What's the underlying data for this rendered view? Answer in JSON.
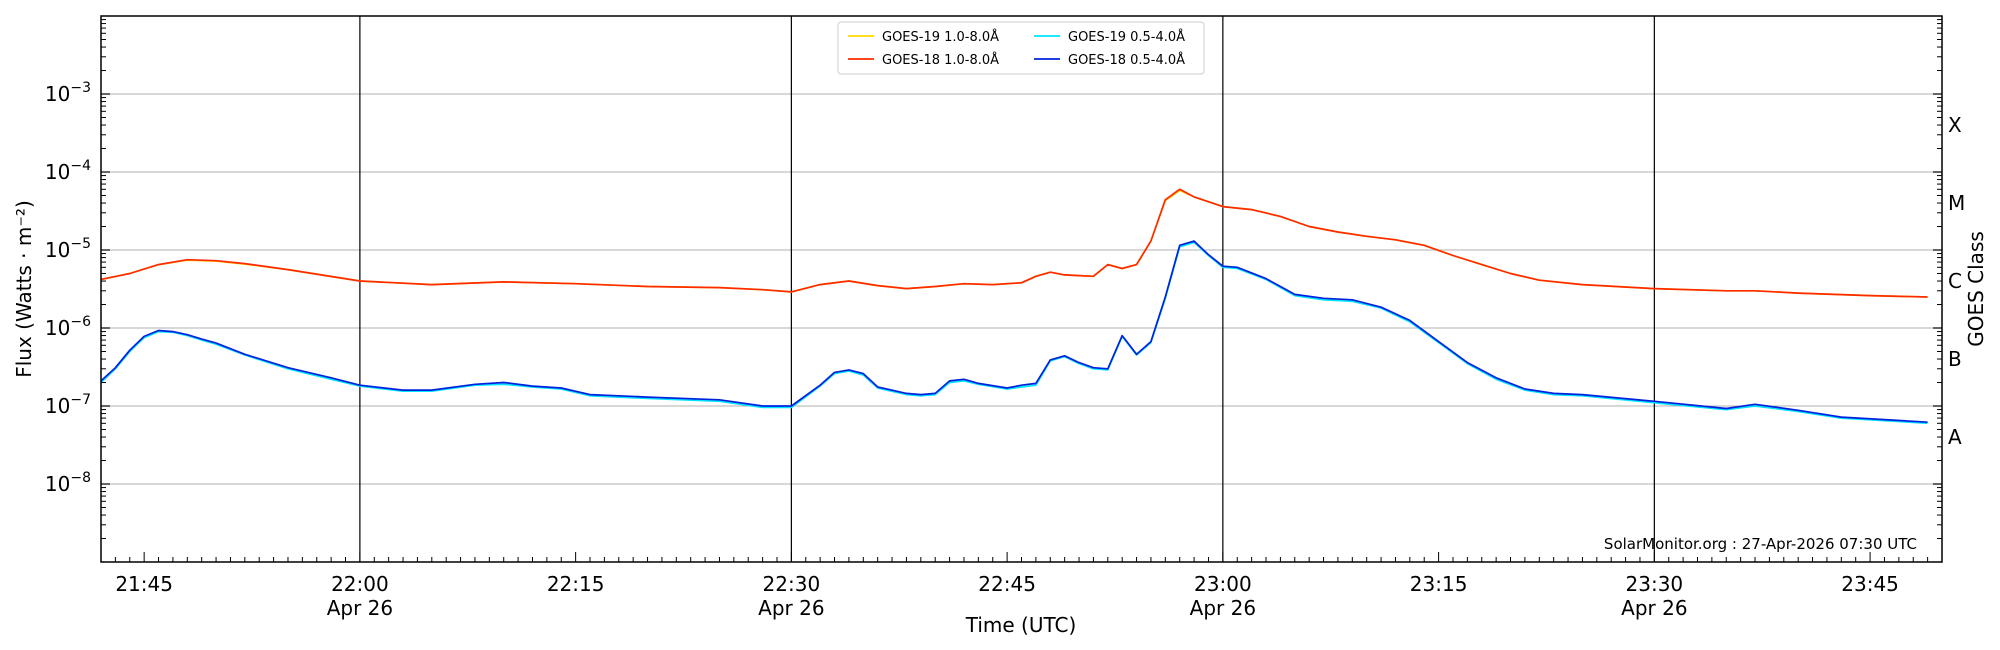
{
  "chart_data": {
    "type": "line",
    "title": "",
    "xlabel": "Time (UTC)",
    "ylabel": "Flux (Watts · m⁻²)",
    "y2label": "GOES Class",
    "yscale": "log",
    "ylim": [
      1e-09,
      0.01
    ],
    "xlim": [
      "21:42",
      "23:50"
    ],
    "grid": "horizontal",
    "legend_position": "top-center",
    "credit": "SolarMonitor.org : 27-Apr-2026 07:30 UTC",
    "y_ticks": [
      {
        "value": 0.001,
        "mant": "10",
        "exp": "−3"
      },
      {
        "value": 0.0001,
        "mant": "10",
        "exp": "−4"
      },
      {
        "value": 1e-05,
        "mant": "10",
        "exp": "−5"
      },
      {
        "value": 1e-06,
        "mant": "10",
        "exp": "−6"
      },
      {
        "value": 1e-07,
        "mant": "10",
        "exp": "−7"
      },
      {
        "value": 1e-08,
        "mant": "10",
        "exp": "−8"
      }
    ],
    "x_ticks": [
      {
        "time": "21:45",
        "label": "21:45",
        "date": ""
      },
      {
        "time": "22:00",
        "label": "22:00",
        "date": "Apr 26"
      },
      {
        "time": "22:15",
        "label": "22:15",
        "date": ""
      },
      {
        "time": "22:30",
        "label": "22:30",
        "date": "Apr 26"
      },
      {
        "time": "22:45",
        "label": "22:45",
        "date": ""
      },
      {
        "time": "23:00",
        "label": "23:00",
        "date": "Apr 26"
      },
      {
        "time": "23:15",
        "label": "23:15",
        "date": ""
      },
      {
        "time": "23:30",
        "label": "23:30",
        "date": "Apr 26"
      },
      {
        "time": "23:45",
        "label": "23:45",
        "date": ""
      }
    ],
    "vertical_lines": [
      "22:00",
      "22:30",
      "23:00",
      "23:30"
    ],
    "goes_classes": [
      {
        "label": "X",
        "flux": 0.0004
      },
      {
        "label": "M",
        "flux": 4e-05
      },
      {
        "label": "C",
        "flux": 4e-06
      },
      {
        "label": "B",
        "flux": 4e-07
      },
      {
        "label": "A",
        "flux": 4e-08
      }
    ],
    "series": [
      {
        "name": "GOES-19 1.0-8.0Å",
        "color": "#ffd700",
        "x": [
          "21:42",
          "21:44",
          "21:46",
          "21:48",
          "21:50",
          "21:52",
          "21:55",
          "22:00",
          "22:05",
          "22:10",
          "22:15",
          "22:20",
          "22:25",
          "22:28",
          "22:30",
          "22:32",
          "22:34",
          "22:36",
          "22:38",
          "22:40",
          "22:42",
          "22:44",
          "22:46",
          "22:47",
          "22:48",
          "22:49",
          "22:50",
          "22:51",
          "22:52",
          "22:53",
          "22:54",
          "22:55",
          "22:56",
          "22:57",
          "22:58",
          "23:00",
          "23:02",
          "23:04",
          "23:06",
          "23:08",
          "23:10",
          "23:12",
          "23:14",
          "23:16",
          "23:18",
          "23:20",
          "23:22",
          "23:25",
          "23:30",
          "23:35",
          "23:37",
          "23:40",
          "23:45",
          "23:49"
        ],
        "y": [
          4.2e-06,
          5e-06,
          6.5e-06,
          7.4e-06,
          7.2e-06,
          6.6e-06,
          5.6e-06,
          4e-06,
          3.6e-06,
          3.9e-06,
          3.7e-06,
          3.4e-06,
          3.3e-06,
          3.1e-06,
          2.9e-06,
          3.6e-06,
          4e-06,
          3.5e-06,
          3.2e-06,
          3.4e-06,
          3.7e-06,
          3.6e-06,
          3.8e-06,
          4.6e-06,
          5.2e-06,
          4.8e-06,
          4.7e-06,
          4.6e-06,
          6.5e-06,
          5.8e-06,
          6.5e-06,
          1.3e-05,
          4.3e-05,
          5.8e-05,
          4.8e-05,
          3.6e-05,
          3.3e-05,
          2.7e-05,
          2e-05,
          1.7e-05,
          1.5e-05,
          1.35e-05,
          1.15e-05,
          8.5e-06,
          6.5e-06,
          5e-06,
          4.1e-06,
          3.6e-06,
          3.2e-06,
          3e-06,
          3e-06,
          2.8e-06,
          2.6e-06,
          2.5e-06
        ]
      },
      {
        "name": "GOES-18 1.0-8.0Å",
        "color": "#ff2a00",
        "x": [
          "21:42",
          "21:44",
          "21:46",
          "21:48",
          "21:50",
          "21:52",
          "21:55",
          "22:00",
          "22:05",
          "22:10",
          "22:15",
          "22:20",
          "22:25",
          "22:28",
          "22:30",
          "22:32",
          "22:34",
          "22:36",
          "22:38",
          "22:40",
          "22:42",
          "22:44",
          "22:46",
          "22:47",
          "22:48",
          "22:49",
          "22:50",
          "22:51",
          "22:52",
          "22:53",
          "22:54",
          "22:55",
          "22:56",
          "22:57",
          "22:58",
          "23:00",
          "23:02",
          "23:04",
          "23:06",
          "23:08",
          "23:10",
          "23:12",
          "23:14",
          "23:16",
          "23:18",
          "23:20",
          "23:22",
          "23:25",
          "23:30",
          "23:35",
          "23:37",
          "23:40",
          "23:45",
          "23:49"
        ],
        "y": [
          4.2e-06,
          5e-06,
          6.5e-06,
          7.5e-06,
          7.3e-06,
          6.7e-06,
          5.6e-06,
          4e-06,
          3.6e-06,
          3.9e-06,
          3.7e-06,
          3.4e-06,
          3.3e-06,
          3.1e-06,
          2.9e-06,
          3.6e-06,
          4e-06,
          3.5e-06,
          3.2e-06,
          3.4e-06,
          3.7e-06,
          3.6e-06,
          3.8e-06,
          4.6e-06,
          5.2e-06,
          4.8e-06,
          4.7e-06,
          4.6e-06,
          6.5e-06,
          5.8e-06,
          6.5e-06,
          1.3e-05,
          4.4e-05,
          6e-05,
          4.8e-05,
          3.6e-05,
          3.3e-05,
          2.7e-05,
          2e-05,
          1.7e-05,
          1.5e-05,
          1.35e-05,
          1.15e-05,
          8.5e-06,
          6.5e-06,
          5e-06,
          4.1e-06,
          3.6e-06,
          3.2e-06,
          3e-06,
          3e-06,
          2.8e-06,
          2.6e-06,
          2.5e-06
        ]
      },
      {
        "name": "GOES-19 0.5-4.0Å",
        "color": "#00e5ff",
        "x": [
          "21:42",
          "21:43",
          "21:44",
          "21:45",
          "21:46",
          "21:47",
          "21:48",
          "21:49",
          "21:50",
          "21:52",
          "21:55",
          "21:58",
          "22:00",
          "22:03",
          "22:05",
          "22:08",
          "22:10",
          "22:12",
          "22:14",
          "22:16",
          "22:18",
          "22:20",
          "22:25",
          "22:28",
          "22:30",
          "22:32",
          "22:33",
          "22:34",
          "22:35",
          "22:36",
          "22:38",
          "22:39",
          "22:40",
          "22:41",
          "22:42",
          "22:43",
          "22:45",
          "22:46",
          "22:47",
          "22:48",
          "22:49",
          "22:50",
          "22:51",
          "22:52",
          "22:53",
          "22:54",
          "22:55",
          "22:56",
          "22:57",
          "22:58",
          "22:59",
          "23:00",
          "23:01",
          "23:03",
          "23:05",
          "23:07",
          "23:09",
          "23:11",
          "23:13",
          "23:15",
          "23:17",
          "23:19",
          "23:21",
          "23:23",
          "23:25",
          "23:30",
          "23:35",
          "23:37",
          "23:40",
          "23:43",
          "23:46",
          "23:49"
        ],
        "y": [
          2e-07,
          3e-07,
          5e-07,
          7.5e-07,
          9e-07,
          8.8e-07,
          8e-07,
          7e-07,
          6.2e-07,
          4.5e-07,
          3e-07,
          2.2e-07,
          1.8e-07,
          1.55e-07,
          1.55e-07,
          1.85e-07,
          1.9e-07,
          1.75e-07,
          1.65e-07,
          1.35e-07,
          1.3e-07,
          1.25e-07,
          1.15e-07,
          9.6e-08,
          9.6e-08,
          1.8e-07,
          2.6e-07,
          2.8e-07,
          2.5e-07,
          1.7e-07,
          1.4e-07,
          1.35e-07,
          1.4e-07,
          2e-07,
          2.1e-07,
          1.9e-07,
          1.65e-07,
          1.75e-07,
          1.85e-07,
          3.8e-07,
          4.3e-07,
          3.5e-07,
          3e-07,
          2.9e-07,
          7.8e-07,
          4.5e-07,
          6.5e-07,
          2.4e-06,
          1.1e-05,
          1.25e-05,
          8.5e-06,
          6e-06,
          5.8e-06,
          4.2e-06,
          2.6e-06,
          2.3e-06,
          2.2e-06,
          1.8e-06,
          1.2e-06,
          6.5e-07,
          3.5e-07,
          2.2e-07,
          1.6e-07,
          1.4e-07,
          1.35e-07,
          1.1e-07,
          9e-08,
          1e-07,
          8.5e-08,
          7e-08,
          6.5e-08,
          6e-08
        ]
      },
      {
        "name": "GOES-18 0.5-4.0Å",
        "color": "#0022dd",
        "x": [
          "21:42",
          "21:43",
          "21:44",
          "21:45",
          "21:46",
          "21:47",
          "21:48",
          "21:49",
          "21:50",
          "21:52",
          "21:55",
          "21:58",
          "22:00",
          "22:03",
          "22:05",
          "22:08",
          "22:10",
          "22:12",
          "22:14",
          "22:16",
          "22:18",
          "22:20",
          "22:25",
          "22:28",
          "22:30",
          "22:32",
          "22:33",
          "22:34",
          "22:35",
          "22:36",
          "22:38",
          "22:39",
          "22:40",
          "22:41",
          "22:42",
          "22:43",
          "22:45",
          "22:46",
          "22:47",
          "22:48",
          "22:49",
          "22:50",
          "22:51",
          "22:52",
          "22:53",
          "22:54",
          "22:55",
          "22:56",
          "22:57",
          "22:58",
          "22:59",
          "23:00",
          "23:01",
          "23:03",
          "23:05",
          "23:07",
          "23:09",
          "23:11",
          "23:13",
          "23:15",
          "23:17",
          "23:19",
          "23:21",
          "23:23",
          "23:25",
          "23:30",
          "23:35",
          "23:37",
          "23:40",
          "23:43",
          "23:46",
          "23:49"
        ],
        "y": [
          2.1e-07,
          3.1e-07,
          5.2e-07,
          7.8e-07,
          9.3e-07,
          9e-07,
          8.2e-07,
          7.2e-07,
          6.4e-07,
          4.6e-07,
          3.1e-07,
          2.3e-07,
          1.85e-07,
          1.6e-07,
          1.6e-07,
          1.9e-07,
          2e-07,
          1.8e-07,
          1.7e-07,
          1.4e-07,
          1.35e-07,
          1.3e-07,
          1.2e-07,
          1e-07,
          1e-07,
          1.85e-07,
          2.7e-07,
          2.9e-07,
          2.6e-07,
          1.75e-07,
          1.45e-07,
          1.4e-07,
          1.45e-07,
          2.1e-07,
          2.2e-07,
          1.95e-07,
          1.7e-07,
          1.85e-07,
          1.95e-07,
          3.9e-07,
          4.4e-07,
          3.6e-07,
          3.1e-07,
          3e-07,
          8e-07,
          4.6e-07,
          6.7e-07,
          2.5e-06,
          1.15e-05,
          1.3e-05,
          8.7e-06,
          6.2e-06,
          6e-06,
          4.3e-06,
          2.7e-06,
          2.4e-06,
          2.3e-06,
          1.85e-06,
          1.25e-06,
          6.7e-07,
          3.6e-07,
          2.3e-07,
          1.65e-07,
          1.45e-07,
          1.4e-07,
          1.15e-07,
          9.3e-08,
          1.05e-07,
          8.8e-08,
          7.2e-08,
          6.7e-08,
          6.2e-08
        ]
      }
    ]
  }
}
